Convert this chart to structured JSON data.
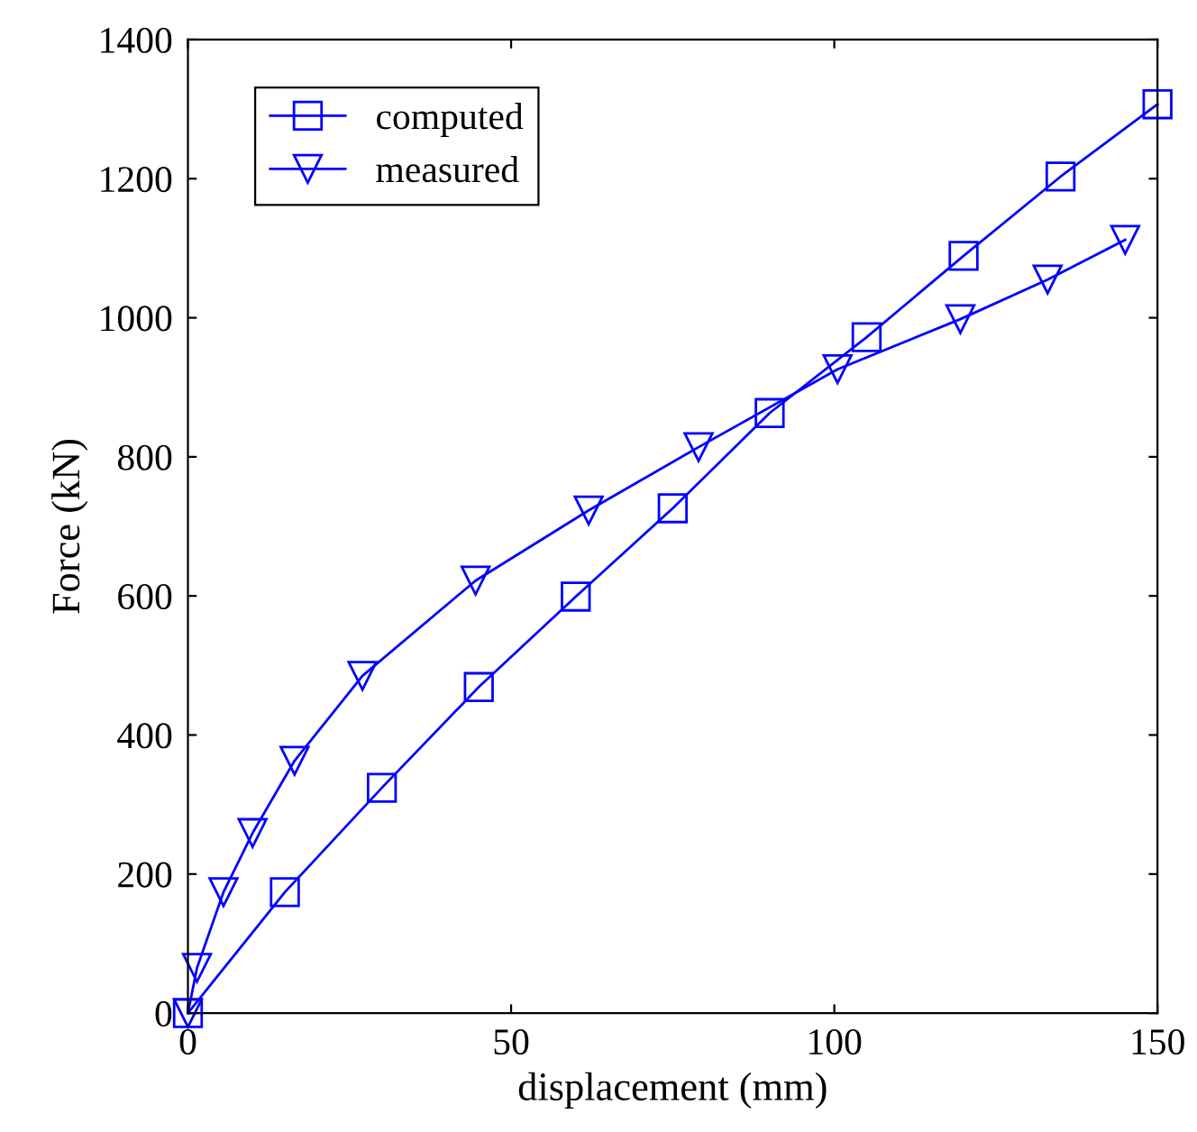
{
  "chart_data": {
    "type": "line",
    "xlabel": "displacement (mm)",
    "ylabel": "Force (kN)",
    "xlim": [
      0,
      150
    ],
    "ylim": [
      0,
      1400
    ],
    "xticks": [
      0,
      50,
      100,
      150
    ],
    "yticks": [
      0,
      200,
      400,
      600,
      800,
      1000,
      1200,
      1400
    ],
    "grid": false,
    "legend": "top left",
    "series": [
      {
        "name": "computed",
        "color": "#0000ff",
        "marker": "square",
        "x": [
          0,
          15,
          30,
          45,
          60,
          75,
          90,
          105,
          120,
          135,
          150
        ],
        "values": [
          0,
          174,
          324,
          469,
          599,
          726,
          863,
          972,
          1089,
          1203,
          1307
        ]
      },
      {
        "name": "measured",
        "color": "#0000ff",
        "marker": "triangle",
        "x": [
          0,
          1.4,
          5.5,
          10,
          16.5,
          27,
          44.5,
          62,
          79,
          100.5,
          119.5,
          133,
          145
        ],
        "values": [
          0,
          65,
          174,
          259,
          363,
          485,
          622,
          723,
          814,
          926,
          998,
          1055,
          1112
        ]
      }
    ]
  }
}
